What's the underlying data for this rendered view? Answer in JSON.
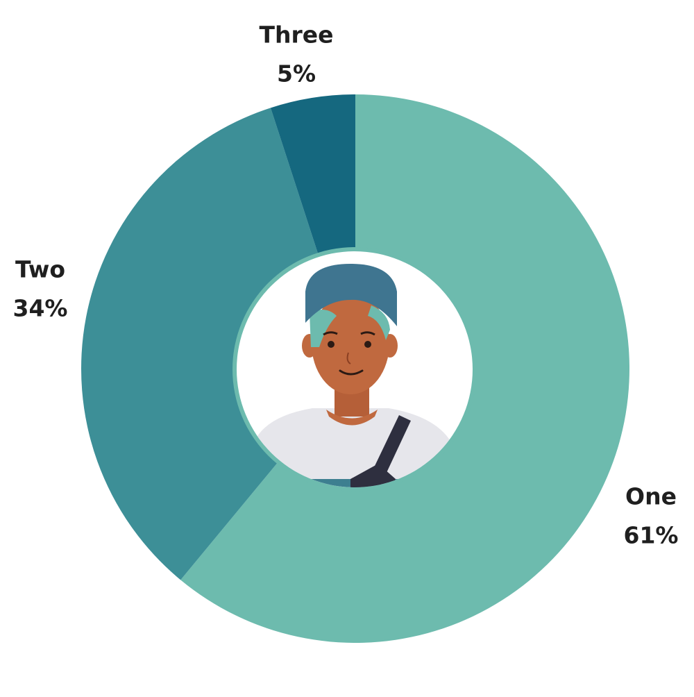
{
  "chart_data": {
    "type": "donut",
    "categories": [
      "One",
      "Two",
      "Three"
    ],
    "values": [
      61,
      34,
      5
    ],
    "value_labels": [
      "61%",
      "34%",
      "5%"
    ],
    "colors": [
      "#6dbbae",
      "#3d8f97",
      "#15687f"
    ]
  }
}
